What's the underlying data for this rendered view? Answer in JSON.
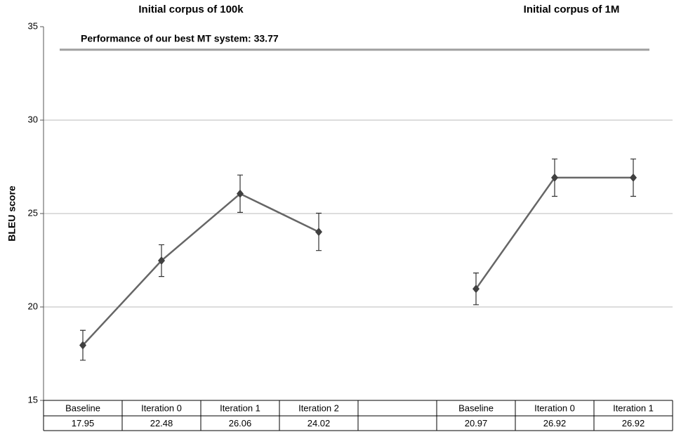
{
  "chart_data": {
    "type": "line",
    "group_titles": [
      "Initial corpus of 100k",
      "Initial corpus of 1M"
    ],
    "y_label": "BLEU score",
    "categories": [
      "Baseline",
      "Iteration 0",
      "Iteration 1",
      "Iteration 2",
      null,
      "Baseline",
      "Iteration 0",
      "Iteration 1"
    ],
    "series": [
      {
        "color": "#666666",
        "marker_color": "#404040",
        "values": [
          17.95,
          22.48,
          26.06,
          24.02,
          null,
          20.97,
          26.92,
          26.92
        ],
        "errors": [
          0.8,
          0.85,
          1.0,
          1.0,
          null,
          0.85,
          1.0,
          1.0
        ]
      }
    ],
    "reference": {
      "value": 33.77,
      "label": "Performance of our best MT system: 33.77",
      "color": "#a0a0a0"
    },
    "ylim": [
      15,
      35
    ],
    "yticks": [
      15,
      20,
      25,
      30,
      35
    ],
    "grid": true
  }
}
